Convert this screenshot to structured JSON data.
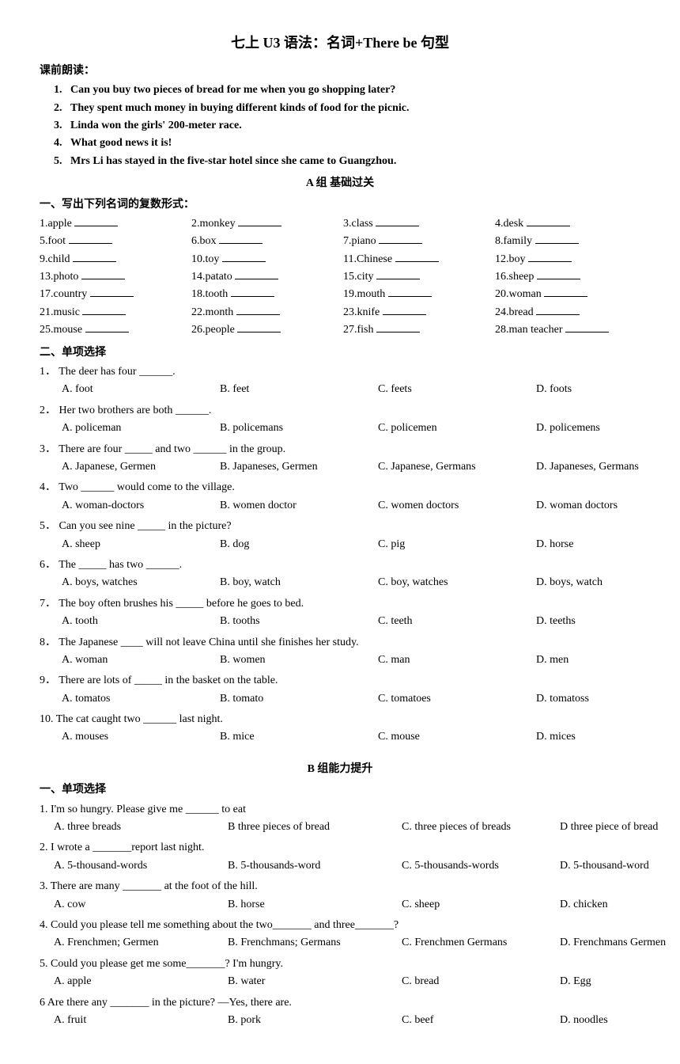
{
  "title": "七上 U3  语法：名词+There be 句型",
  "preReading": {
    "label": "课前朗读：",
    "items": [
      "Can you buy two pieces of bread for me when you go shopping later?",
      "They spent much money in buying different kinds of food for the picnic.",
      "Linda won the girls' 200-meter race.",
      "What good news it is!",
      "Mrs Li has stayed in the five-star hotel since she came to Guangzhou."
    ]
  },
  "groupA": {
    "header": "A 组 基础过关",
    "section1": {
      "label": "一、写出下列名词的复数形式：",
      "items": [
        "1.apple",
        "2.monkey",
        "3.class",
        "4.desk",
        "5.foot",
        "6.box",
        "7.piano",
        "8.family",
        "9.child",
        "10.toy",
        "11.Chinese",
        "12.boy",
        "13.photo",
        "14.patato",
        "15.city",
        "16.sheep",
        "17.country",
        "18.tooth",
        "19.mouth",
        "20.woman",
        "21.music",
        "22.month",
        "23.knife",
        "24.bread",
        "25.mouse",
        "26.people",
        "27.fish",
        "28.man teacher"
      ]
    },
    "section2": {
      "label": "二、单项选择",
      "questions": [
        {
          "n": "1．",
          "stem": "The deer has four ______.",
          "opts": [
            "A. foot",
            "B. feet",
            "C. feets",
            "D. foots"
          ]
        },
        {
          "n": "2．",
          "stem": "Her two brothers are both ______.",
          "opts": [
            "A. policeman",
            "B. policemans",
            "C. policemen",
            "D. policemens"
          ]
        },
        {
          "n": "3．",
          "stem": "There are four _____ and two ______ in the group.",
          "opts": [
            "A. Japanese, Germen",
            "B. Japaneses, Germen",
            "C. Japanese, Germans",
            "D. Japaneses, Germans"
          ]
        },
        {
          "n": "4．",
          "stem": "Two ______ would come to the village.",
          "opts": [
            "A. woman-doctors",
            "B. women doctor",
            "C. women doctors",
            "D. woman doctors"
          ]
        },
        {
          "n": "5．",
          "stem": "Can you see nine _____ in the picture?",
          "opts": [
            "A. sheep",
            "B. dog",
            "C. pig",
            "D. horse"
          ]
        },
        {
          "n": "6．",
          "stem": "The _____ has two ______.",
          "opts": [
            "A. boys, watches",
            "B. boy, watch",
            "C. boy, watches",
            "D. boys, watch"
          ]
        },
        {
          "n": "7．",
          "stem": "The boy often brushes his _____ before he goes to bed.",
          "opts": [
            "A. tooth",
            "B. tooths",
            "C. teeth",
            "D. teeths"
          ]
        },
        {
          "n": "8．",
          "stem": "The Japanese ____ will not leave China until she finishes her study.",
          "opts": [
            "A. woman",
            "B. women",
            "C. man",
            "D. men"
          ]
        },
        {
          "n": "9．",
          "stem": "There are lots of _____ in the basket on the table.",
          "opts": [
            "A. tomatos",
            "B. tomato",
            "C. tomatoes",
            "D. tomatoss"
          ]
        },
        {
          "n": "10.",
          "stem": "The cat caught two ______ last night.",
          "opts": [
            "A. mouses",
            "B. mice",
            "C. mouse",
            "D. mices"
          ]
        }
      ]
    }
  },
  "groupB": {
    "header": "B 组能力提升",
    "section1": {
      "label": "一、单项选择",
      "questions": [
        {
          "n": "1.",
          "stem": "I'm so hungry. Please give me ______ to eat",
          "opts": [
            "A. three breads",
            "B three pieces of bread",
            "C. three pieces of breads",
            "D three piece of bread"
          ]
        },
        {
          "n": "2.",
          "stem": "I wrote a _______report last night.",
          "opts": [
            "A. 5-thousand-words",
            "B. 5-thousands-word",
            "C. 5-thousands-words",
            "D.  5-thousand-word"
          ]
        },
        {
          "n": "3.",
          "stem": "There are many _______ at the foot of the hill.",
          "opts": [
            "A. cow",
            "B. horse",
            "C. sheep",
            "D. chicken"
          ]
        },
        {
          "n": "4.",
          "stem": "Could you please tell me something about the two_______ and three_______?",
          "opts": [
            "A. Frenchmen; Germen",
            "B. Frenchmans; Germans",
            "C. Frenchmen Germans",
            "D. Frenchmans Germen"
          ]
        },
        {
          "n": "5.",
          "stem": "Could you please get me some_______? I'm hungry.",
          "opts": [
            "A. apple",
            "B. water",
            "C. bread",
            "D. Egg"
          ]
        },
        {
          "n": "6",
          "stem": "Are there any _______ in the picture?  —Yes, there are.",
          "opts": [
            "A. fruit",
            "B. pork",
            "C. beef",
            "D. noodles"
          ]
        }
      ]
    }
  }
}
